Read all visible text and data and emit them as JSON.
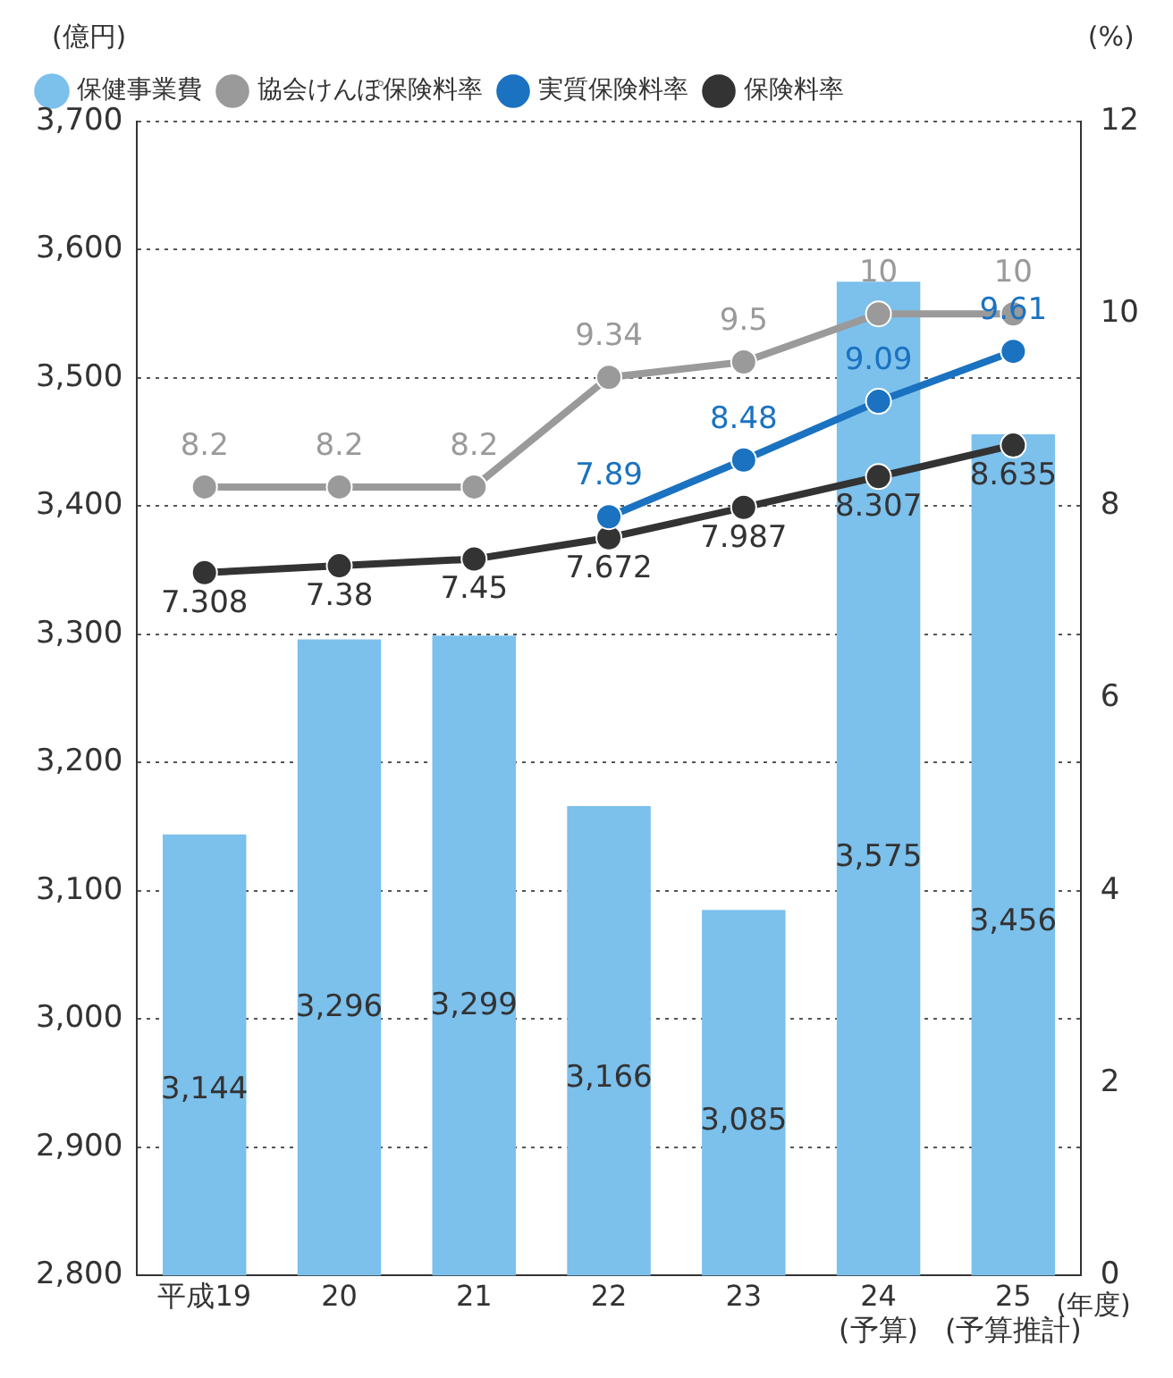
{
  "chart_data": {
    "type": "bar",
    "categories": [
      "平成19",
      "20",
      "21",
      "22",
      "23",
      "24\n(予算)",
      "25\n(予算推計)"
    ],
    "xlabel": "(年度)",
    "ylabel": "(億円)",
    "y2label": "(%)",
    "ylim": [
      2800,
      3700
    ],
    "yticks": [
      {
        "value": 2800,
        "label": "2,800"
      },
      {
        "value": 2900,
        "label": "2,900"
      },
      {
        "value": 3000,
        "label": "3,000"
      },
      {
        "value": 3100,
        "label": "3,100"
      },
      {
        "value": 3200,
        "label": "3,200"
      },
      {
        "value": 3300,
        "label": "3,300"
      },
      {
        "value": 3400,
        "label": "3,400"
      },
      {
        "value": 3500,
        "label": "3,500"
      },
      {
        "value": 3600,
        "label": "3,600"
      },
      {
        "value": 3700,
        "label": "3,700"
      }
    ],
    "y2lim": [
      0,
      12
    ],
    "y2ticks": [
      0,
      2,
      4,
      6,
      8,
      10,
      12
    ],
    "grid": "y",
    "legend": "top left",
    "marker": "circle",
    "data_labels": true,
    "series": [
      {
        "name": "保健事業費",
        "color": "#7cc0ec",
        "values": [
          3144,
          3296,
          3299,
          3166,
          3085,
          3575,
          3456
        ],
        "value_labels": [
          "3,144",
          "3,296",
          "3,299",
          "3,166",
          "3,085",
          "3,575",
          "3,456"
        ]
      },
      {
        "name": "協会けんぽ保険料率",
        "type": "line",
        "axis": "y2",
        "color": "#9a9a9a",
        "values": [
          8.2,
          8.2,
          8.2,
          9.34,
          9.5,
          10,
          10
        ]
      },
      {
        "name": "実質保険料率",
        "type": "line",
        "axis": "y2",
        "color": "#1a72c0",
        "values": [
          null,
          null,
          null,
          7.89,
          8.48,
          9.09,
          9.61
        ]
      },
      {
        "name": "保険料率",
        "type": "line",
        "axis": "y2",
        "color": "#333333",
        "values": [
          7.308,
          7.38,
          7.45,
          7.672,
          7.987,
          8.307,
          8.635
        ]
      }
    ]
  }
}
